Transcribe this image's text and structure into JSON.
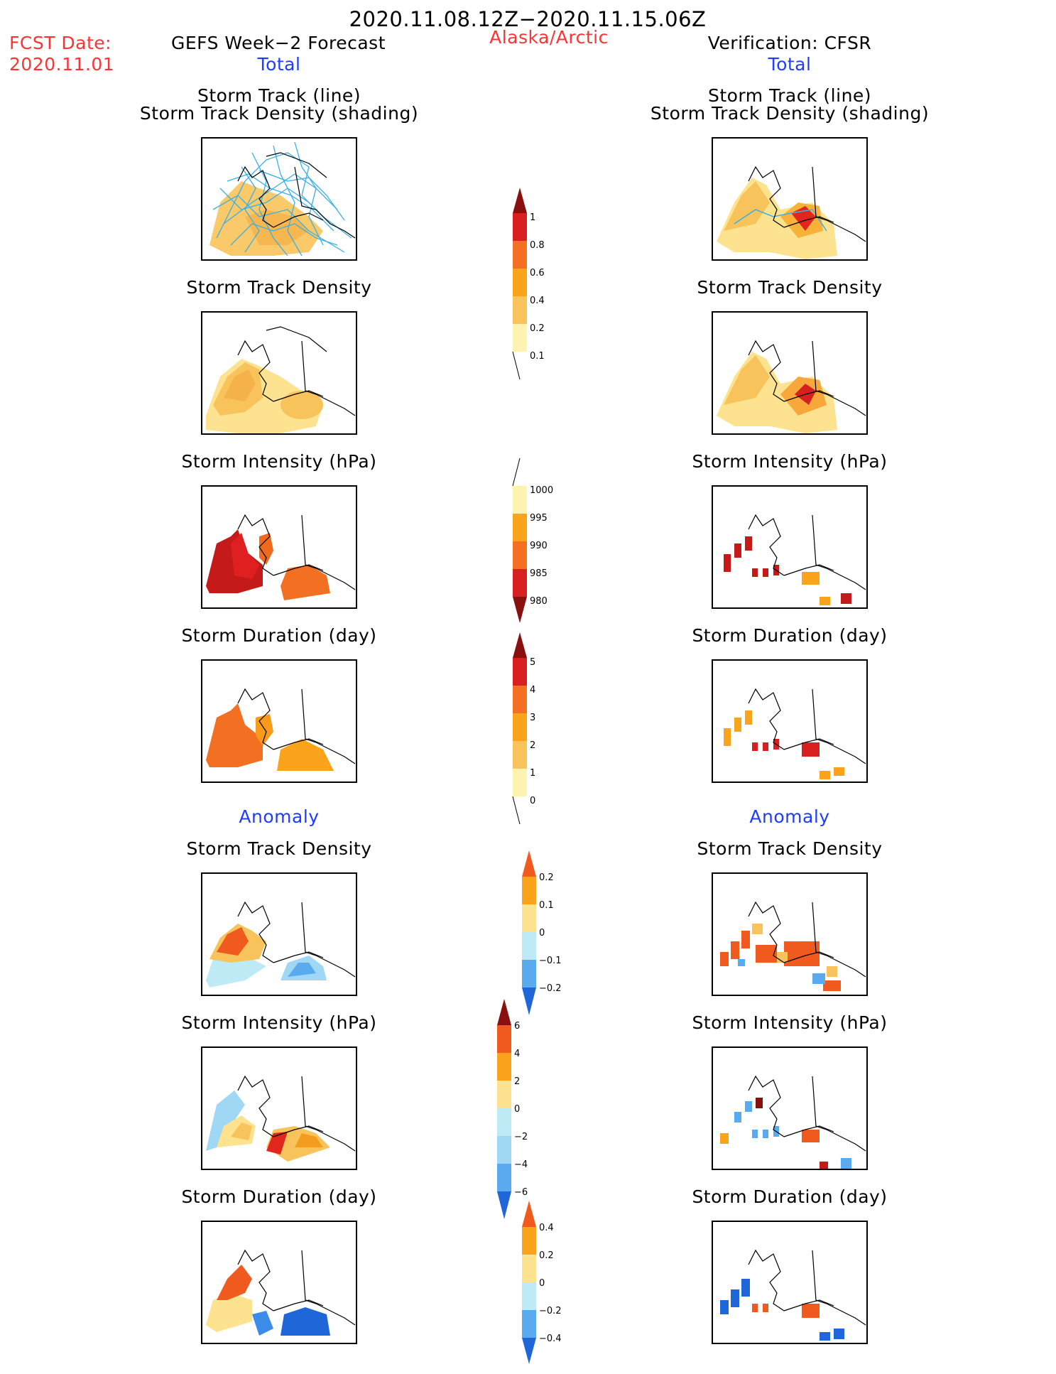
{
  "header": {
    "period": "2020.11.08.12Z−2020.11.15.06Z",
    "fcst_label": "FCST Date:",
    "fcst_date": "2020.11.01",
    "left_title": "GEFS Week−2 Forecast",
    "region": "Alaska/Arctic",
    "right_title": "Verification: CFSR"
  },
  "sections": {
    "total": "Total",
    "anomaly": "Anomaly"
  },
  "panel_titles": {
    "track_line": "Storm Track (line)",
    "track_shading": "Storm Track Density (shading)",
    "density": "Storm Track Density",
    "intensity": "Storm Intensity (hPa)",
    "duration": "Storm Duration (day)"
  },
  "colorbars": {
    "density_total": [
      "1",
      "0.8",
      "0.6",
      "0.4",
      "0.2",
      "0.1"
    ],
    "intensity_total": [
      "1000",
      "995",
      "990",
      "985",
      "980"
    ],
    "duration_total": [
      "5",
      "4",
      "3",
      "2",
      "1",
      "0"
    ],
    "density_anom": [
      "0.2",
      "0.1",
      "0",
      "−0.1",
      "−0.2"
    ],
    "intensity_anom": [
      "6",
      "4",
      "2",
      "0",
      "−2",
      "−4",
      "−6"
    ],
    "duration_anom": [
      "0.4",
      "0.2",
      "0",
      "−0.2",
      "−0.4"
    ]
  },
  "colors": {
    "header_red": "#ff3333",
    "section_blue": "#1f3cff",
    "track_lines": "#3ab0e6",
    "land_lines": "#000000"
  }
}
